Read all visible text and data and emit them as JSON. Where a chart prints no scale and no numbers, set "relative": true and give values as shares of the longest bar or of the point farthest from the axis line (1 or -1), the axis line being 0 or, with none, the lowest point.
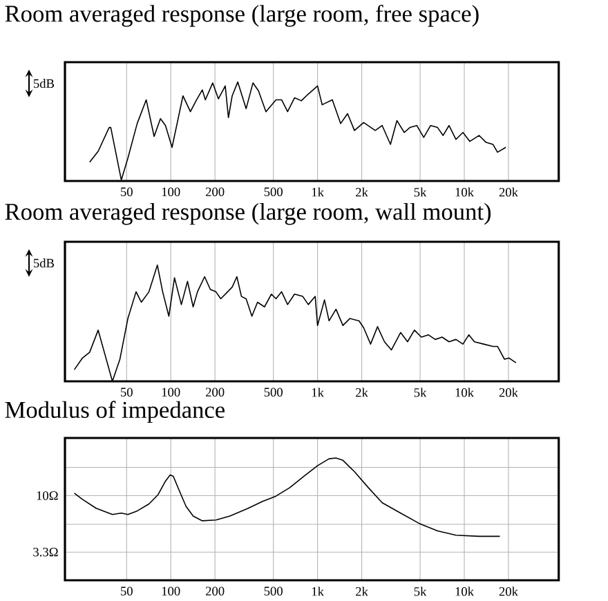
{
  "chart_data": [
    {
      "type": "line",
      "title": "Room averaged response (large room, free space)",
      "relative": true,
      "log": "x",
      "grid": "x",
      "color": "#000000",
      "annotations": [
        "5dB"
      ],
      "xlim": [
        19,
        44000
      ],
      "xticks": [
        50,
        100,
        200,
        500,
        {
          "value": 1000,
          "label": "1k"
        },
        {
          "value": 2000,
          "label": "2k"
        },
        {
          "value": 5000,
          "label": "5k"
        },
        {
          "value": 10000,
          "label": "10k"
        },
        {
          "value": 20000,
          "label": "20k"
        }
      ],
      "x": [
        28,
        32,
        38,
        39,
        46,
        51,
        59,
        68,
        77,
        85,
        92,
        102,
        121,
        136,
        150,
        164,
        172,
        193,
        211,
        235,
        247,
        262,
        286,
        326,
        363,
        396,
        445,
        521,
        569,
        625,
        697,
        776,
        853,
        1000,
        1075,
        1261,
        1436,
        1601,
        1785,
        2062,
        2473,
        2757,
        3140,
        3475,
        3900,
        4256,
        4746,
        5290,
        5896,
        6573,
        7166,
        7870,
        8775,
        9790,
        10910,
        12610,
        14060,
        15670,
        16840,
        19190
      ],
      "values": [
        0.19,
        0.3,
        0.54,
        0.54,
        0.01,
        0.23,
        0.58,
        0.82,
        0.45,
        0.63,
        0.56,
        0.34,
        0.86,
        0.7,
        0.82,
        0.92,
        0.82,
        0.99,
        0.83,
        0.96,
        0.64,
        0.86,
        1.0,
        0.73,
        0.99,
        0.91,
        0.7,
        0.82,
        0.82,
        0.7,
        0.84,
        0.81,
        0.87,
        0.96,
        0.77,
        0.82,
        0.58,
        0.68,
        0.51,
        0.59,
        0.51,
        0.56,
        0.37,
        0.61,
        0.49,
        0.54,
        0.56,
        0.44,
        0.56,
        0.54,
        0.46,
        0.56,
        0.42,
        0.49,
        0.4,
        0.46,
        0.39,
        0.37,
        0.29,
        0.34
      ]
    },
    {
      "type": "line",
      "title": "Room averaged response (large room, wall mount)",
      "relative": true,
      "log": "x",
      "grid": "x",
      "color": "#000000",
      "annotations": [
        "5dB"
      ],
      "xlim": [
        19,
        44000
      ],
      "xticks": [
        50,
        100,
        200,
        500,
        {
          "value": 1000,
          "label": "1k"
        },
        {
          "value": 2000,
          "label": "2k"
        },
        {
          "value": 5000,
          "label": "5k"
        },
        {
          "value": 10000,
          "label": "10k"
        },
        {
          "value": 20000,
          "label": "20k"
        }
      ],
      "x": [
        22,
        25,
        28,
        32,
        40,
        45,
        51,
        58,
        63,
        71,
        81,
        88,
        97,
        106,
        118,
        130,
        142,
        152,
        170,
        186,
        203,
        219,
        244,
        262,
        282,
        303,
        326,
        357,
        390,
        435,
        485,
        521,
        569,
        625,
        697,
        793,
        865,
        964,
        1000,
        1115,
        1198,
        1336,
        1489,
        1660,
        1919,
        2062,
        2299,
        2563,
        2857,
        3185,
        3681,
        4103,
        4573,
        5100,
        5686,
        6339,
        7066,
        7870,
        8775,
        9790,
        10740,
        11720,
        13550,
        15670,
        16840,
        18790,
        20180,
        22510
      ],
      "values": [
        0.1,
        0.2,
        0.25,
        0.44,
        0.0,
        0.19,
        0.54,
        0.77,
        0.68,
        0.77,
        1.0,
        0.77,
        0.56,
        0.89,
        0.66,
        0.86,
        0.64,
        0.77,
        0.9,
        0.79,
        0.77,
        0.71,
        0.77,
        0.81,
        0.9,
        0.73,
        0.71,
        0.56,
        0.68,
        0.64,
        0.75,
        0.71,
        0.77,
        0.66,
        0.75,
        0.73,
        0.66,
        0.73,
        0.48,
        0.7,
        0.52,
        0.62,
        0.48,
        0.54,
        0.52,
        0.46,
        0.32,
        0.47,
        0.34,
        0.27,
        0.42,
        0.34,
        0.44,
        0.38,
        0.4,
        0.36,
        0.38,
        0.34,
        0.36,
        0.32,
        0.4,
        0.34,
        0.32,
        0.3,
        0.3,
        0.19,
        0.2,
        0.16
      ]
    },
    {
      "type": "line",
      "title": "Modulus of impedance",
      "log": "xy",
      "grid": true,
      "color": "#000000",
      "xlim": [
        19,
        44000
      ],
      "xticks": [
        50,
        100,
        200,
        500,
        {
          "value": 1000,
          "label": "1k"
        },
        {
          "value": 2000,
          "label": "2k"
        },
        {
          "value": 5000,
          "label": "5k"
        },
        {
          "value": 10000,
          "label": "10k"
        },
        {
          "value": 20000,
          "label": "20k"
        }
      ],
      "ylim": [
        1.9,
        31
      ],
      "yticks": [
        {
          "value": 3.3,
          "label": "3.3Ω"
        },
        {
          "value": 5.7,
          "label": null
        },
        {
          "value": 10,
          "label": "10Ω"
        },
        {
          "value": 17.4,
          "label": null
        }
      ],
      "x": [
        22,
        25,
        31,
        40,
        46,
        51,
        59,
        71,
        82,
        92,
        99,
        104,
        114,
        127,
        142,
        164,
        203,
        253,
        337,
        420,
        521,
        647,
        805,
        1000,
        1198,
        1336,
        1489,
        1785,
        2218,
        2757,
        3681,
        4920,
        6573,
        8775,
        12610,
        17460
      ],
      "values": [
        10.5,
        9.3,
        7.8,
        6.9,
        7.1,
        6.9,
        7.4,
        8.5,
        10.2,
        13.3,
        15.0,
        14.6,
        11.1,
        8.1,
        6.7,
        6.1,
        6.2,
        6.7,
        7.8,
        8.9,
        9.9,
        11.7,
        14.6,
        18.0,
        20.6,
        20.9,
        20.0,
        16.0,
        11.7,
        8.7,
        7.1,
        5.8,
        5.0,
        4.6,
        4.5,
        4.5
      ]
    }
  ]
}
